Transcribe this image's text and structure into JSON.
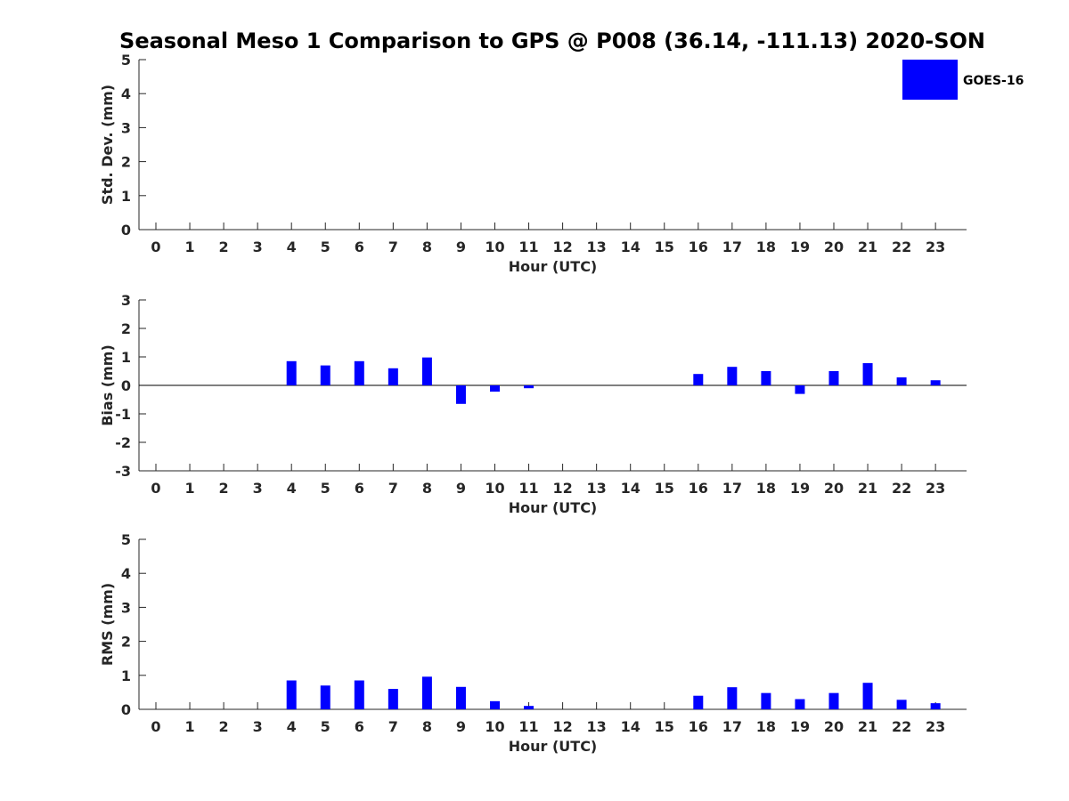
{
  "title": "Seasonal Meso 1 Comparison to GPS @ P008 (36.14, -111.13) 2020-SON",
  "colors": {
    "bar": "#0000ff",
    "axis": "#262626"
  },
  "legend": {
    "label": "GOES-16",
    "placement": "top-right"
  },
  "chart_data": [
    {
      "type": "bar",
      "id": "std",
      "xlabel": "Hour (UTC)",
      "ylabel": "Std. Dev. (mm)",
      "ylim": [
        0,
        5
      ],
      "yticks": [
        0,
        1,
        2,
        3,
        4,
        5
      ],
      "categories": [
        "0",
        "1",
        "2",
        "3",
        "4",
        "5",
        "6",
        "7",
        "8",
        "9",
        "10",
        "11",
        "12",
        "13",
        "14",
        "15",
        "16",
        "17",
        "18",
        "19",
        "20",
        "21",
        "22",
        "23"
      ],
      "series": [
        {
          "name": "GOES-16",
          "values": [
            null,
            null,
            null,
            null,
            0,
            0,
            0,
            0,
            0,
            0,
            0,
            0,
            null,
            null,
            null,
            null,
            0,
            0,
            0,
            0,
            0,
            0,
            0,
            0
          ]
        }
      ]
    },
    {
      "type": "bar",
      "id": "bias",
      "xlabel": "Hour (UTC)",
      "ylabel": "Bias (mm)",
      "ylim": [
        -3,
        3
      ],
      "yticks": [
        -3,
        -2,
        -1,
        0,
        1,
        2,
        3
      ],
      "zero_line": true,
      "categories": [
        "0",
        "1",
        "2",
        "3",
        "4",
        "5",
        "6",
        "7",
        "8",
        "9",
        "10",
        "11",
        "12",
        "13",
        "14",
        "15",
        "16",
        "17",
        "18",
        "19",
        "20",
        "21",
        "22",
        "23"
      ],
      "series": [
        {
          "name": "GOES-16",
          "values": [
            null,
            null,
            null,
            null,
            0.85,
            0.7,
            0.85,
            0.6,
            0.98,
            -0.65,
            -0.22,
            -0.1,
            null,
            null,
            null,
            null,
            0.4,
            0.65,
            0.5,
            -0.3,
            0.5,
            0.78,
            0.28,
            0.18
          ]
        }
      ]
    },
    {
      "type": "bar",
      "id": "rms",
      "xlabel": "Hour (UTC)",
      "ylabel": "RMS (mm)",
      "ylim": [
        0,
        5
      ],
      "yticks": [
        0,
        1,
        2,
        3,
        4,
        5
      ],
      "categories": [
        "0",
        "1",
        "2",
        "3",
        "4",
        "5",
        "6",
        "7",
        "8",
        "9",
        "10",
        "11",
        "12",
        "13",
        "14",
        "15",
        "16",
        "17",
        "18",
        "19",
        "20",
        "21",
        "22",
        "23"
      ],
      "series": [
        {
          "name": "GOES-16",
          "values": [
            null,
            null,
            null,
            null,
            0.85,
            0.7,
            0.85,
            0.6,
            0.96,
            0.66,
            0.24,
            0.1,
            null,
            null,
            null,
            null,
            0.4,
            0.65,
            0.48,
            0.3,
            0.48,
            0.78,
            0.28,
            0.18
          ]
        }
      ]
    }
  ]
}
